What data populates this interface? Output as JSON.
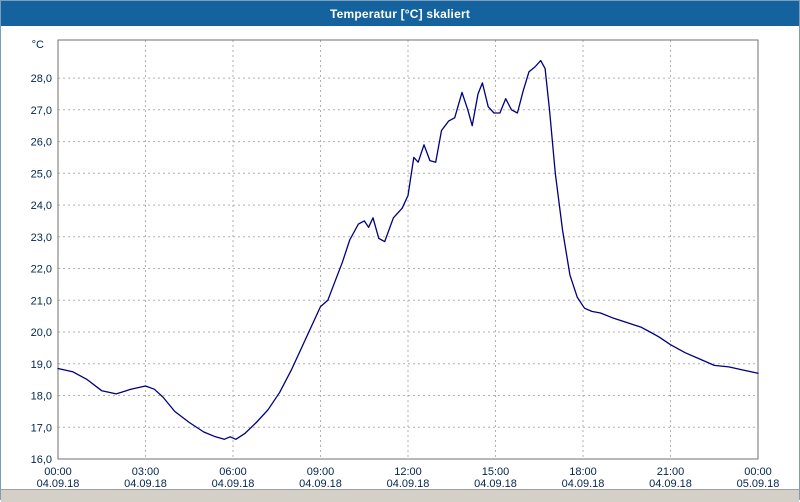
{
  "window": {
    "title": "Temperatur [°C] skaliert"
  },
  "colors": {
    "titlebar_bg": "#15639e",
    "titlebar_text": "#ffffff",
    "line": "#000080",
    "grid": "#b0b0b0",
    "frame": "#707070",
    "axis_text": "#00264d",
    "chart_bg": "#ffffff",
    "footer_bg": "#d4d0c8"
  },
  "chart_data": {
    "type": "line",
    "title": "Temperatur [°C] skaliert",
    "ylabel": "°C",
    "xlabel": "",
    "grid": true,
    "legend_position": "none",
    "ylim": [
      16,
      29.2
    ],
    "xlim_hours": [
      0,
      24
    ],
    "y_ticks": [
      {
        "value": 16,
        "label": "16,0"
      },
      {
        "value": 17,
        "label": "17,0"
      },
      {
        "value": 18,
        "label": "18,0"
      },
      {
        "value": 19,
        "label": "19,0"
      },
      {
        "value": 20,
        "label": "20,0"
      },
      {
        "value": 21,
        "label": "21,0"
      },
      {
        "value": 22,
        "label": "22,0"
      },
      {
        "value": 23,
        "label": "23,0"
      },
      {
        "value": 24,
        "label": "24,0"
      },
      {
        "value": 25,
        "label": "25,0"
      },
      {
        "value": 26,
        "label": "26,0"
      },
      {
        "value": 27,
        "label": "27,0"
      },
      {
        "value": 28,
        "label": "28,0"
      }
    ],
    "x_ticks": [
      {
        "hour": 0,
        "time": "00:00",
        "date": "04.09.18"
      },
      {
        "hour": 3,
        "time": "03:00",
        "date": "04.09.18"
      },
      {
        "hour": 6,
        "time": "06:00",
        "date": "04.09.18"
      },
      {
        "hour": 9,
        "time": "09:00",
        "date": "04.09.18"
      },
      {
        "hour": 12,
        "time": "12:00",
        "date": "04.09.18"
      },
      {
        "hour": 15,
        "time": "15:00",
        "date": "04.09.18"
      },
      {
        "hour": 18,
        "time": "18:00",
        "date": "04.09.18"
      },
      {
        "hour": 21,
        "time": "21:00",
        "date": "04.09.18"
      },
      {
        "hour": 24,
        "time": "00:00",
        "date": "05.09.18"
      }
    ],
    "series": [
      {
        "name": "Temperatur",
        "points": [
          [
            0,
            18.85
          ],
          [
            0.5,
            18.75
          ],
          [
            1,
            18.5
          ],
          [
            1.5,
            18.15
          ],
          [
            2,
            18.05
          ],
          [
            2.5,
            18.2
          ],
          [
            3,
            18.3
          ],
          [
            3.3,
            18.2
          ],
          [
            3.6,
            17.95
          ],
          [
            4,
            17.5
          ],
          [
            4.5,
            17.15
          ],
          [
            5,
            16.85
          ],
          [
            5.4,
            16.7
          ],
          [
            5.7,
            16.62
          ],
          [
            5.9,
            16.7
          ],
          [
            6.1,
            16.62
          ],
          [
            6.4,
            16.8
          ],
          [
            6.8,
            17.15
          ],
          [
            7.2,
            17.55
          ],
          [
            7.6,
            18.1
          ],
          [
            8,
            18.8
          ],
          [
            8.5,
            19.8
          ],
          [
            9,
            20.8
          ],
          [
            9.25,
            21.0
          ],
          [
            9.5,
            21.6
          ],
          [
            9.75,
            22.2
          ],
          [
            10,
            22.9
          ],
          [
            10.3,
            23.4
          ],
          [
            10.5,
            23.5
          ],
          [
            10.65,
            23.3
          ],
          [
            10.8,
            23.6
          ],
          [
            11,
            22.95
          ],
          [
            11.2,
            22.85
          ],
          [
            11.5,
            23.6
          ],
          [
            11.8,
            23.9
          ],
          [
            12,
            24.3
          ],
          [
            12.2,
            25.5
          ],
          [
            12.35,
            25.35
          ],
          [
            12.55,
            25.9
          ],
          [
            12.75,
            25.4
          ],
          [
            12.95,
            25.35
          ],
          [
            13.15,
            26.35
          ],
          [
            13.4,
            26.65
          ],
          [
            13.6,
            26.75
          ],
          [
            13.85,
            27.55
          ],
          [
            14.05,
            27.0
          ],
          [
            14.2,
            26.5
          ],
          [
            14.4,
            27.5
          ],
          [
            14.55,
            27.85
          ],
          [
            14.75,
            27.1
          ],
          [
            14.95,
            26.9
          ],
          [
            15.15,
            26.9
          ],
          [
            15.35,
            27.35
          ],
          [
            15.55,
            27.0
          ],
          [
            15.75,
            26.9
          ],
          [
            15.95,
            27.6
          ],
          [
            16.15,
            28.2
          ],
          [
            16.35,
            28.35
          ],
          [
            16.55,
            28.55
          ],
          [
            16.7,
            28.3
          ],
          [
            16.85,
            27.0
          ],
          [
            17.05,
            25.0
          ],
          [
            17.3,
            23.2
          ],
          [
            17.55,
            21.8
          ],
          [
            17.8,
            21.1
          ],
          [
            18.05,
            20.75
          ],
          [
            18.3,
            20.65
          ],
          [
            18.6,
            20.6
          ],
          [
            19,
            20.45
          ],
          [
            19.5,
            20.3
          ],
          [
            20,
            20.15
          ],
          [
            20.3,
            20.0
          ],
          [
            20.6,
            19.85
          ],
          [
            21,
            19.6
          ],
          [
            21.5,
            19.35
          ],
          [
            22,
            19.15
          ],
          [
            22.5,
            18.95
          ],
          [
            23,
            18.9
          ],
          [
            23.5,
            18.8
          ],
          [
            24,
            18.7
          ]
        ]
      }
    ]
  }
}
